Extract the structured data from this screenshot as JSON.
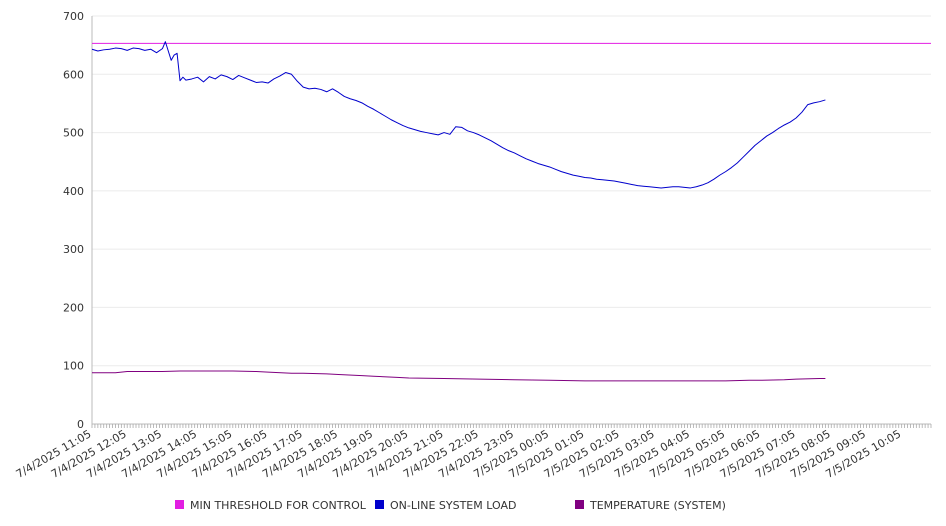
{
  "chart_data": {
    "type": "line",
    "title": "",
    "xlabel": "",
    "ylabel": "",
    "ylim": [
      0,
      700
    ],
    "yticks": [
      0,
      100,
      200,
      300,
      400,
      500,
      600,
      700
    ],
    "xlim": [
      "7/4/2025 11:05",
      "7/5/2025 10:55"
    ],
    "xtick_labels": [
      "7/4/2025 11:05",
      "7/4/2025 12:05",
      "7/4/2025 13:05",
      "7/4/2025 14:05",
      "7/4/2025 15:05",
      "7/4/2025 16:05",
      "7/4/2025 17:05",
      "7/4/2025 18:05",
      "7/4/2025 19:05",
      "7/4/2025 20:05",
      "7/4/2025 21:05",
      "7/4/2025 22:05",
      "7/4/2025 23:05",
      "7/5/2025 00:05",
      "7/5/2025 01:05",
      "7/5/2025 02:05",
      "7/5/2025 03:05",
      "7/5/2025 04:05",
      "7/5/2025 05:05",
      "7/5/2025 06:05",
      "7/5/2025 07:05",
      "7/5/2025 08:05",
      "7/5/2025 09:05",
      "7/5/2025 10:05"
    ],
    "grid": {
      "horizontal": true,
      "vertical": false
    },
    "legend_position": "bottom",
    "series": [
      {
        "name": "MIN THRESHOLD FOR CONTROL",
        "color": "#e21ee2",
        "points": [
          [
            "7/4/2025 11:05",
            653
          ],
          [
            "7/5/2025 10:55",
            653
          ]
        ]
      },
      {
        "name": "ON-LINE SYSTEM LOAD",
        "color": "#0000cc",
        "points": [
          [
            "7/4/2025 11:05",
            643
          ],
          [
            "7/4/2025 11:15",
            640
          ],
          [
            "7/4/2025 11:25",
            642
          ],
          [
            "7/4/2025 11:35",
            643
          ],
          [
            "7/4/2025 11:45",
            645
          ],
          [
            "7/4/2025 11:55",
            644
          ],
          [
            "7/4/2025 12:05",
            641
          ],
          [
            "7/4/2025 12:15",
            645
          ],
          [
            "7/4/2025 12:25",
            644
          ],
          [
            "7/4/2025 12:35",
            641
          ],
          [
            "7/4/2025 12:45",
            643
          ],
          [
            "7/4/2025 12:55",
            637
          ],
          [
            "7/4/2025 13:05",
            644
          ],
          [
            "7/4/2025 13:10",
            656
          ],
          [
            "7/4/2025 13:15",
            640
          ],
          [
            "7/4/2025 13:20",
            624
          ],
          [
            "7/4/2025 13:25",
            633
          ],
          [
            "7/4/2025 13:30",
            636
          ],
          [
            "7/4/2025 13:35",
            589
          ],
          [
            "7/4/2025 13:40",
            595
          ],
          [
            "7/4/2025 13:45",
            590
          ],
          [
            "7/4/2025 13:55",
            592
          ],
          [
            "7/4/2025 14:05",
            595
          ],
          [
            "7/4/2025 14:15",
            587
          ],
          [
            "7/4/2025 14:25",
            596
          ],
          [
            "7/4/2025 14:35",
            592
          ],
          [
            "7/4/2025 14:45",
            599
          ],
          [
            "7/4/2025 14:55",
            596
          ],
          [
            "7/4/2025 15:05",
            591
          ],
          [
            "7/4/2025 15:15",
            598
          ],
          [
            "7/4/2025 15:25",
            594
          ],
          [
            "7/4/2025 15:35",
            590
          ],
          [
            "7/4/2025 15:45",
            586
          ],
          [
            "7/4/2025 15:55",
            587
          ],
          [
            "7/4/2025 16:05",
            585
          ],
          [
            "7/4/2025 16:15",
            592
          ],
          [
            "7/4/2025 16:25",
            597
          ],
          [
            "7/4/2025 16:35",
            603
          ],
          [
            "7/4/2025 16:45",
            600
          ],
          [
            "7/4/2025 16:55",
            588
          ],
          [
            "7/4/2025 17:05",
            578
          ],
          [
            "7/4/2025 17:15",
            575
          ],
          [
            "7/4/2025 17:25",
            576
          ],
          [
            "7/4/2025 17:35",
            574
          ],
          [
            "7/4/2025 17:45",
            570
          ],
          [
            "7/4/2025 17:55",
            575
          ],
          [
            "7/4/2025 18:05",
            569
          ],
          [
            "7/4/2025 18:15",
            562
          ],
          [
            "7/4/2025 18:25",
            558
          ],
          [
            "7/4/2025 18:35",
            555
          ],
          [
            "7/4/2025 18:45",
            551
          ],
          [
            "7/4/2025 18:55",
            545
          ],
          [
            "7/4/2025 19:05",
            540
          ],
          [
            "7/4/2025 19:15",
            534
          ],
          [
            "7/4/2025 19:25",
            528
          ],
          [
            "7/4/2025 19:35",
            522
          ],
          [
            "7/4/2025 19:45",
            517
          ],
          [
            "7/4/2025 19:55",
            512
          ],
          [
            "7/4/2025 20:05",
            508
          ],
          [
            "7/4/2025 20:15",
            505
          ],
          [
            "7/4/2025 20:25",
            502
          ],
          [
            "7/4/2025 20:35",
            500
          ],
          [
            "7/4/2025 20:45",
            498
          ],
          [
            "7/4/2025 20:55",
            496
          ],
          [
            "7/4/2025 21:05",
            500
          ],
          [
            "7/4/2025 21:15",
            497
          ],
          [
            "7/4/2025 21:25",
            510
          ],
          [
            "7/4/2025 21:35",
            509
          ],
          [
            "7/4/2025 21:45",
            503
          ],
          [
            "7/4/2025 21:55",
            500
          ],
          [
            "7/4/2025 22:05",
            496
          ],
          [
            "7/4/2025 22:15",
            491
          ],
          [
            "7/4/2025 22:25",
            486
          ],
          [
            "7/4/2025 22:35",
            480
          ],
          [
            "7/4/2025 22:45",
            474
          ],
          [
            "7/4/2025 22:55",
            469
          ],
          [
            "7/4/2025 23:05",
            465
          ],
          [
            "7/4/2025 23:15",
            460
          ],
          [
            "7/4/2025 23:25",
            455
          ],
          [
            "7/4/2025 23:35",
            451
          ],
          [
            "7/4/2025 23:45",
            447
          ],
          [
            "7/4/2025 23:55",
            444
          ],
          [
            "7/5/2025 00:05",
            441
          ],
          [
            "7/5/2025 00:15",
            437
          ],
          [
            "7/5/2025 00:25",
            433
          ],
          [
            "7/5/2025 00:35",
            430
          ],
          [
            "7/5/2025 00:45",
            427
          ],
          [
            "7/5/2025 00:55",
            425
          ],
          [
            "7/5/2025 01:05",
            423
          ],
          [
            "7/5/2025 01:15",
            422
          ],
          [
            "7/5/2025 01:25",
            420
          ],
          [
            "7/5/2025 01:35",
            419
          ],
          [
            "7/5/2025 01:45",
            418
          ],
          [
            "7/5/2025 01:55",
            417
          ],
          [
            "7/5/2025 02:05",
            415
          ],
          [
            "7/5/2025 02:15",
            413
          ],
          [
            "7/5/2025 02:25",
            411
          ],
          [
            "7/5/2025 02:35",
            409
          ],
          [
            "7/5/2025 02:45",
            408
          ],
          [
            "7/5/2025 02:55",
            407
          ],
          [
            "7/5/2025 03:05",
            406
          ],
          [
            "7/5/2025 03:15",
            405
          ],
          [
            "7/5/2025 03:25",
            406
          ],
          [
            "7/5/2025 03:35",
            407
          ],
          [
            "7/5/2025 03:45",
            407
          ],
          [
            "7/5/2025 03:55",
            406
          ],
          [
            "7/5/2025 04:05",
            405
          ],
          [
            "7/5/2025 04:15",
            407
          ],
          [
            "7/5/2025 04:25",
            410
          ],
          [
            "7/5/2025 04:35",
            414
          ],
          [
            "7/5/2025 04:45",
            420
          ],
          [
            "7/5/2025 04:55",
            427
          ],
          [
            "7/5/2025 05:05",
            433
          ],
          [
            "7/5/2025 05:15",
            440
          ],
          [
            "7/5/2025 05:25",
            448
          ],
          [
            "7/5/2025 05:35",
            458
          ],
          [
            "7/5/2025 05:45",
            468
          ],
          [
            "7/5/2025 05:55",
            478
          ],
          [
            "7/5/2025 06:05",
            486
          ],
          [
            "7/5/2025 06:15",
            494
          ],
          [
            "7/5/2025 06:25",
            500
          ],
          [
            "7/5/2025 06:35",
            507
          ],
          [
            "7/5/2025 06:45",
            513
          ],
          [
            "7/5/2025 06:55",
            518
          ],
          [
            "7/5/2025 07:05",
            525
          ],
          [
            "7/5/2025 07:15",
            535
          ],
          [
            "7/5/2025 07:25",
            548
          ],
          [
            "7/5/2025 07:35",
            551
          ],
          [
            "7/5/2025 07:45",
            553
          ],
          [
            "7/5/2025 07:55",
            556
          ]
        ]
      },
      {
        "name": "TEMPERATURE (SYSTEM)",
        "color": "#800080",
        "points": [
          [
            "7/4/2025 11:05",
            88
          ],
          [
            "7/4/2025 11:45",
            88
          ],
          [
            "7/4/2025 12:05",
            90
          ],
          [
            "7/4/2025 13:05",
            90
          ],
          [
            "7/4/2025 13:35",
            91
          ],
          [
            "7/4/2025 14:05",
            91
          ],
          [
            "7/4/2025 15:05",
            91
          ],
          [
            "7/4/2025 15:45",
            90
          ],
          [
            "7/4/2025 16:05",
            89
          ],
          [
            "7/4/2025 16:45",
            87
          ],
          [
            "7/4/2025 17:05",
            87
          ],
          [
            "7/4/2025 17:45",
            86
          ],
          [
            "7/4/2025 18:05",
            85
          ],
          [
            "7/4/2025 18:45",
            83
          ],
          [
            "7/4/2025 19:05",
            82
          ],
          [
            "7/4/2025 19:45",
            80
          ],
          [
            "7/4/2025 20:05",
            79
          ],
          [
            "7/4/2025 21:05",
            78
          ],
          [
            "7/4/2025 22:05",
            77
          ],
          [
            "7/4/2025 23:05",
            76
          ],
          [
            "7/5/2025 00:05",
            75
          ],
          [
            "7/5/2025 01:05",
            74
          ],
          [
            "7/5/2025 02:05",
            74
          ],
          [
            "7/5/2025 03:05",
            74
          ],
          [
            "7/5/2025 04:05",
            74
          ],
          [
            "7/5/2025 05:05",
            74
          ],
          [
            "7/5/2025 05:45",
            75
          ],
          [
            "7/5/2025 06:05",
            75
          ],
          [
            "7/5/2025 06:45",
            76
          ],
          [
            "7/5/2025 07:05",
            77
          ],
          [
            "7/5/2025 07:45",
            78
          ],
          [
            "7/5/2025 07:55",
            78
          ]
        ]
      }
    ]
  }
}
